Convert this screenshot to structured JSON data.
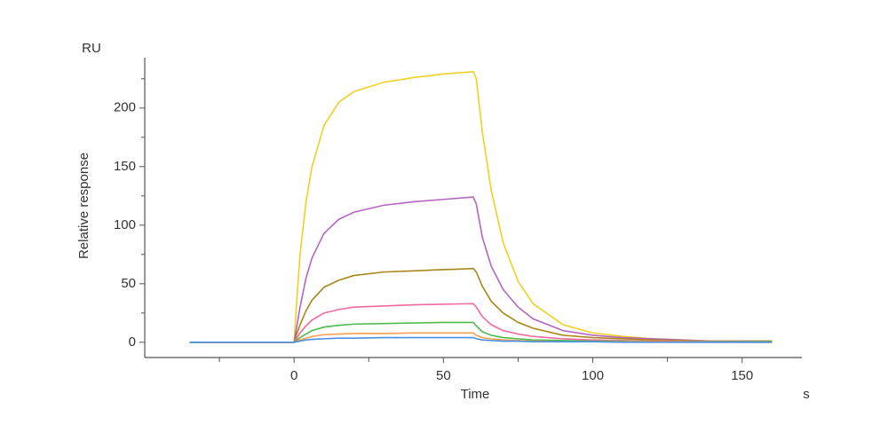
{
  "chart_data": {
    "type": "line",
    "y_unit": "RU",
    "y_label": "Relative response",
    "x_label": "Time",
    "x_unit": "s",
    "x": [
      -35,
      0,
      1,
      2,
      4,
      6,
      10,
      15,
      20,
      30,
      40,
      50,
      60,
      61,
      63,
      66,
      70,
      75,
      80,
      90,
      100,
      110,
      120,
      140,
      160
    ],
    "series": [
      {
        "color": "#f0d020",
        "values": [
          0,
          0,
          40,
          75,
          120,
          150,
          185,
          205,
          214,
          222,
          226,
          229,
          231,
          225,
          180,
          130,
          85,
          52,
          33,
          15,
          8,
          5,
          3,
          1,
          1
        ]
      },
      {
        "color": "#b565c0",
        "values": [
          0,
          0,
          15,
          30,
          55,
          72,
          93,
          105,
          111,
          117,
          120,
          122,
          124,
          118,
          90,
          65,
          45,
          30,
          20,
          10,
          6,
          4,
          3,
          1,
          1
        ]
      },
      {
        "color": "#a8861a",
        "values": [
          0,
          0,
          8,
          15,
          27,
          36,
          47,
          53,
          57,
          60,
          61,
          62,
          63,
          60,
          48,
          35,
          25,
          17,
          12,
          6,
          4,
          3,
          2,
          1,
          1
        ]
      },
      {
        "color": "#f06aa0",
        "values": [
          0,
          0,
          4,
          8,
          14,
          19,
          25,
          28,
          30,
          31,
          32,
          32.5,
          33,
          30,
          22,
          15,
          10,
          7,
          5,
          3,
          2,
          1.5,
          1,
          1,
          0.5
        ]
      },
      {
        "color": "#4cbb4c",
        "values": [
          0,
          0,
          2,
          4,
          7,
          10,
          13,
          14.5,
          15.5,
          16,
          16.5,
          17,
          17,
          14,
          9,
          6,
          4,
          3,
          2,
          1.5,
          1,
          1,
          0.5,
          0.5,
          0.5
        ]
      },
      {
        "color": "#f5a050",
        "values": [
          0,
          0,
          1,
          2,
          3.5,
          5,
          6.5,
          7,
          7.5,
          7.5,
          8,
          8,
          8,
          6,
          4,
          3,
          2,
          1.5,
          1,
          0.5,
          0.5,
          0.5,
          0.5,
          0,
          0
        ]
      },
      {
        "color": "#4a90e0",
        "values": [
          0,
          0,
          0.5,
          1,
          2,
          2.5,
          3,
          3.5,
          3.5,
          4,
          4,
          4,
          4,
          3,
          2,
          1.5,
          1,
          1,
          0.5,
          0.5,
          0.5,
          0,
          0,
          0,
          0
        ]
      }
    ],
    "xlim": [
      -50,
      170
    ],
    "xticks": [
      0,
      50,
      100,
      150
    ],
    "xminor_ticks": [
      -25,
      25,
      75,
      125
    ],
    "ylim": [
      -13,
      243
    ],
    "yticks": [
      0,
      50,
      100,
      150,
      200
    ],
    "yminor_ticks": [
      25,
      75,
      125,
      175,
      225
    ],
    "grid": false
  }
}
